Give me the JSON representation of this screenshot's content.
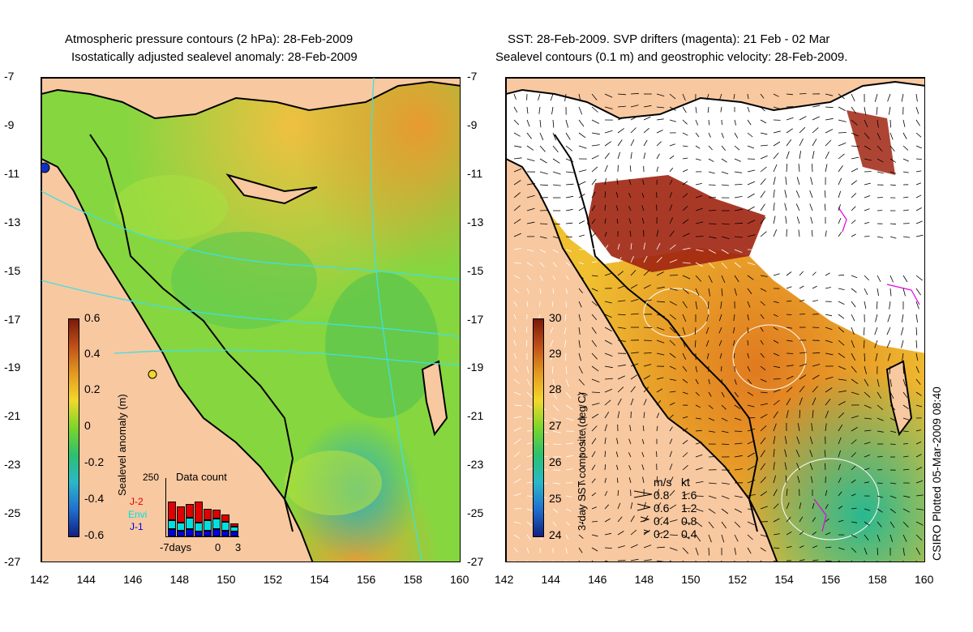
{
  "left_title": {
    "line1": "Atmospheric pressure contours (2 hPa): 28-Feb-2009",
    "line2": "Isostatically adjusted sealevel anomaly: 28-Feb-2009"
  },
  "right_title": {
    "line1": "SST: 28-Feb-2009. SVP drifters (magenta): 21 Feb - 02 Mar",
    "line2": "Sealevel contours (0.1 m) and geostrophic velocity: 28-Feb-2009."
  },
  "y_ticks": [
    "-7",
    "-9",
    "-11",
    "-13",
    "-15",
    "-17",
    "-19",
    "-21",
    "-23",
    "-25",
    "-27"
  ],
  "x_ticks": [
    "142",
    "144",
    "146",
    "148",
    "150",
    "152",
    "154",
    "156",
    "158",
    "160"
  ],
  "left_colorbar": {
    "label": "Sealevel anomaly (m)",
    "ticks": [
      "0.6",
      "0.4",
      "0.2",
      "0",
      "-0.2",
      "-0.4",
      "-0.6"
    ],
    "colors": [
      "#7a1a0a",
      "#c0501a",
      "#e39a20",
      "#f2d82a",
      "#7ad62a",
      "#2cc070",
      "#2ab8c8",
      "#2070d0",
      "#102080"
    ]
  },
  "right_colorbar": {
    "label": "3-day SST composite (deg C)",
    "ticks": [
      "30",
      "29",
      "28",
      "27",
      "26",
      "25",
      "24"
    ],
    "colors": [
      "#7a1a0a",
      "#c0501a",
      "#e39a20",
      "#f2d82a",
      "#7ad62a",
      "#2cc070",
      "#2ab8c8",
      "#2070d0",
      "#102080"
    ]
  },
  "data_count": {
    "title": "Data count",
    "ymax": "250",
    "series": [
      "J-2",
      "Envi",
      "J-1"
    ],
    "series_colors": [
      "#e00000",
      "#00e0e0",
      "#0000e0"
    ],
    "x_labels": [
      "-7days",
      "0",
      "3"
    ]
  },
  "velocity_legend": {
    "header_ms": "m/s",
    "header_kt": "kt",
    "rows": [
      {
        "ms": "0.8",
        "kt": "1.6"
      },
      {
        "ms": "0.6",
        "kt": "1.2"
      },
      {
        "ms": "0.4",
        "kt": "0.8"
      },
      {
        "ms": "0.2",
        "kt": "0.4"
      }
    ]
  },
  "side_label": "CSIRO Plotted 05-Mar-2009 08:40",
  "colors": {
    "land": "#f8c8a0",
    "coast": "#000000",
    "contour": "#40e0e0",
    "drifter": "#e000e0"
  }
}
